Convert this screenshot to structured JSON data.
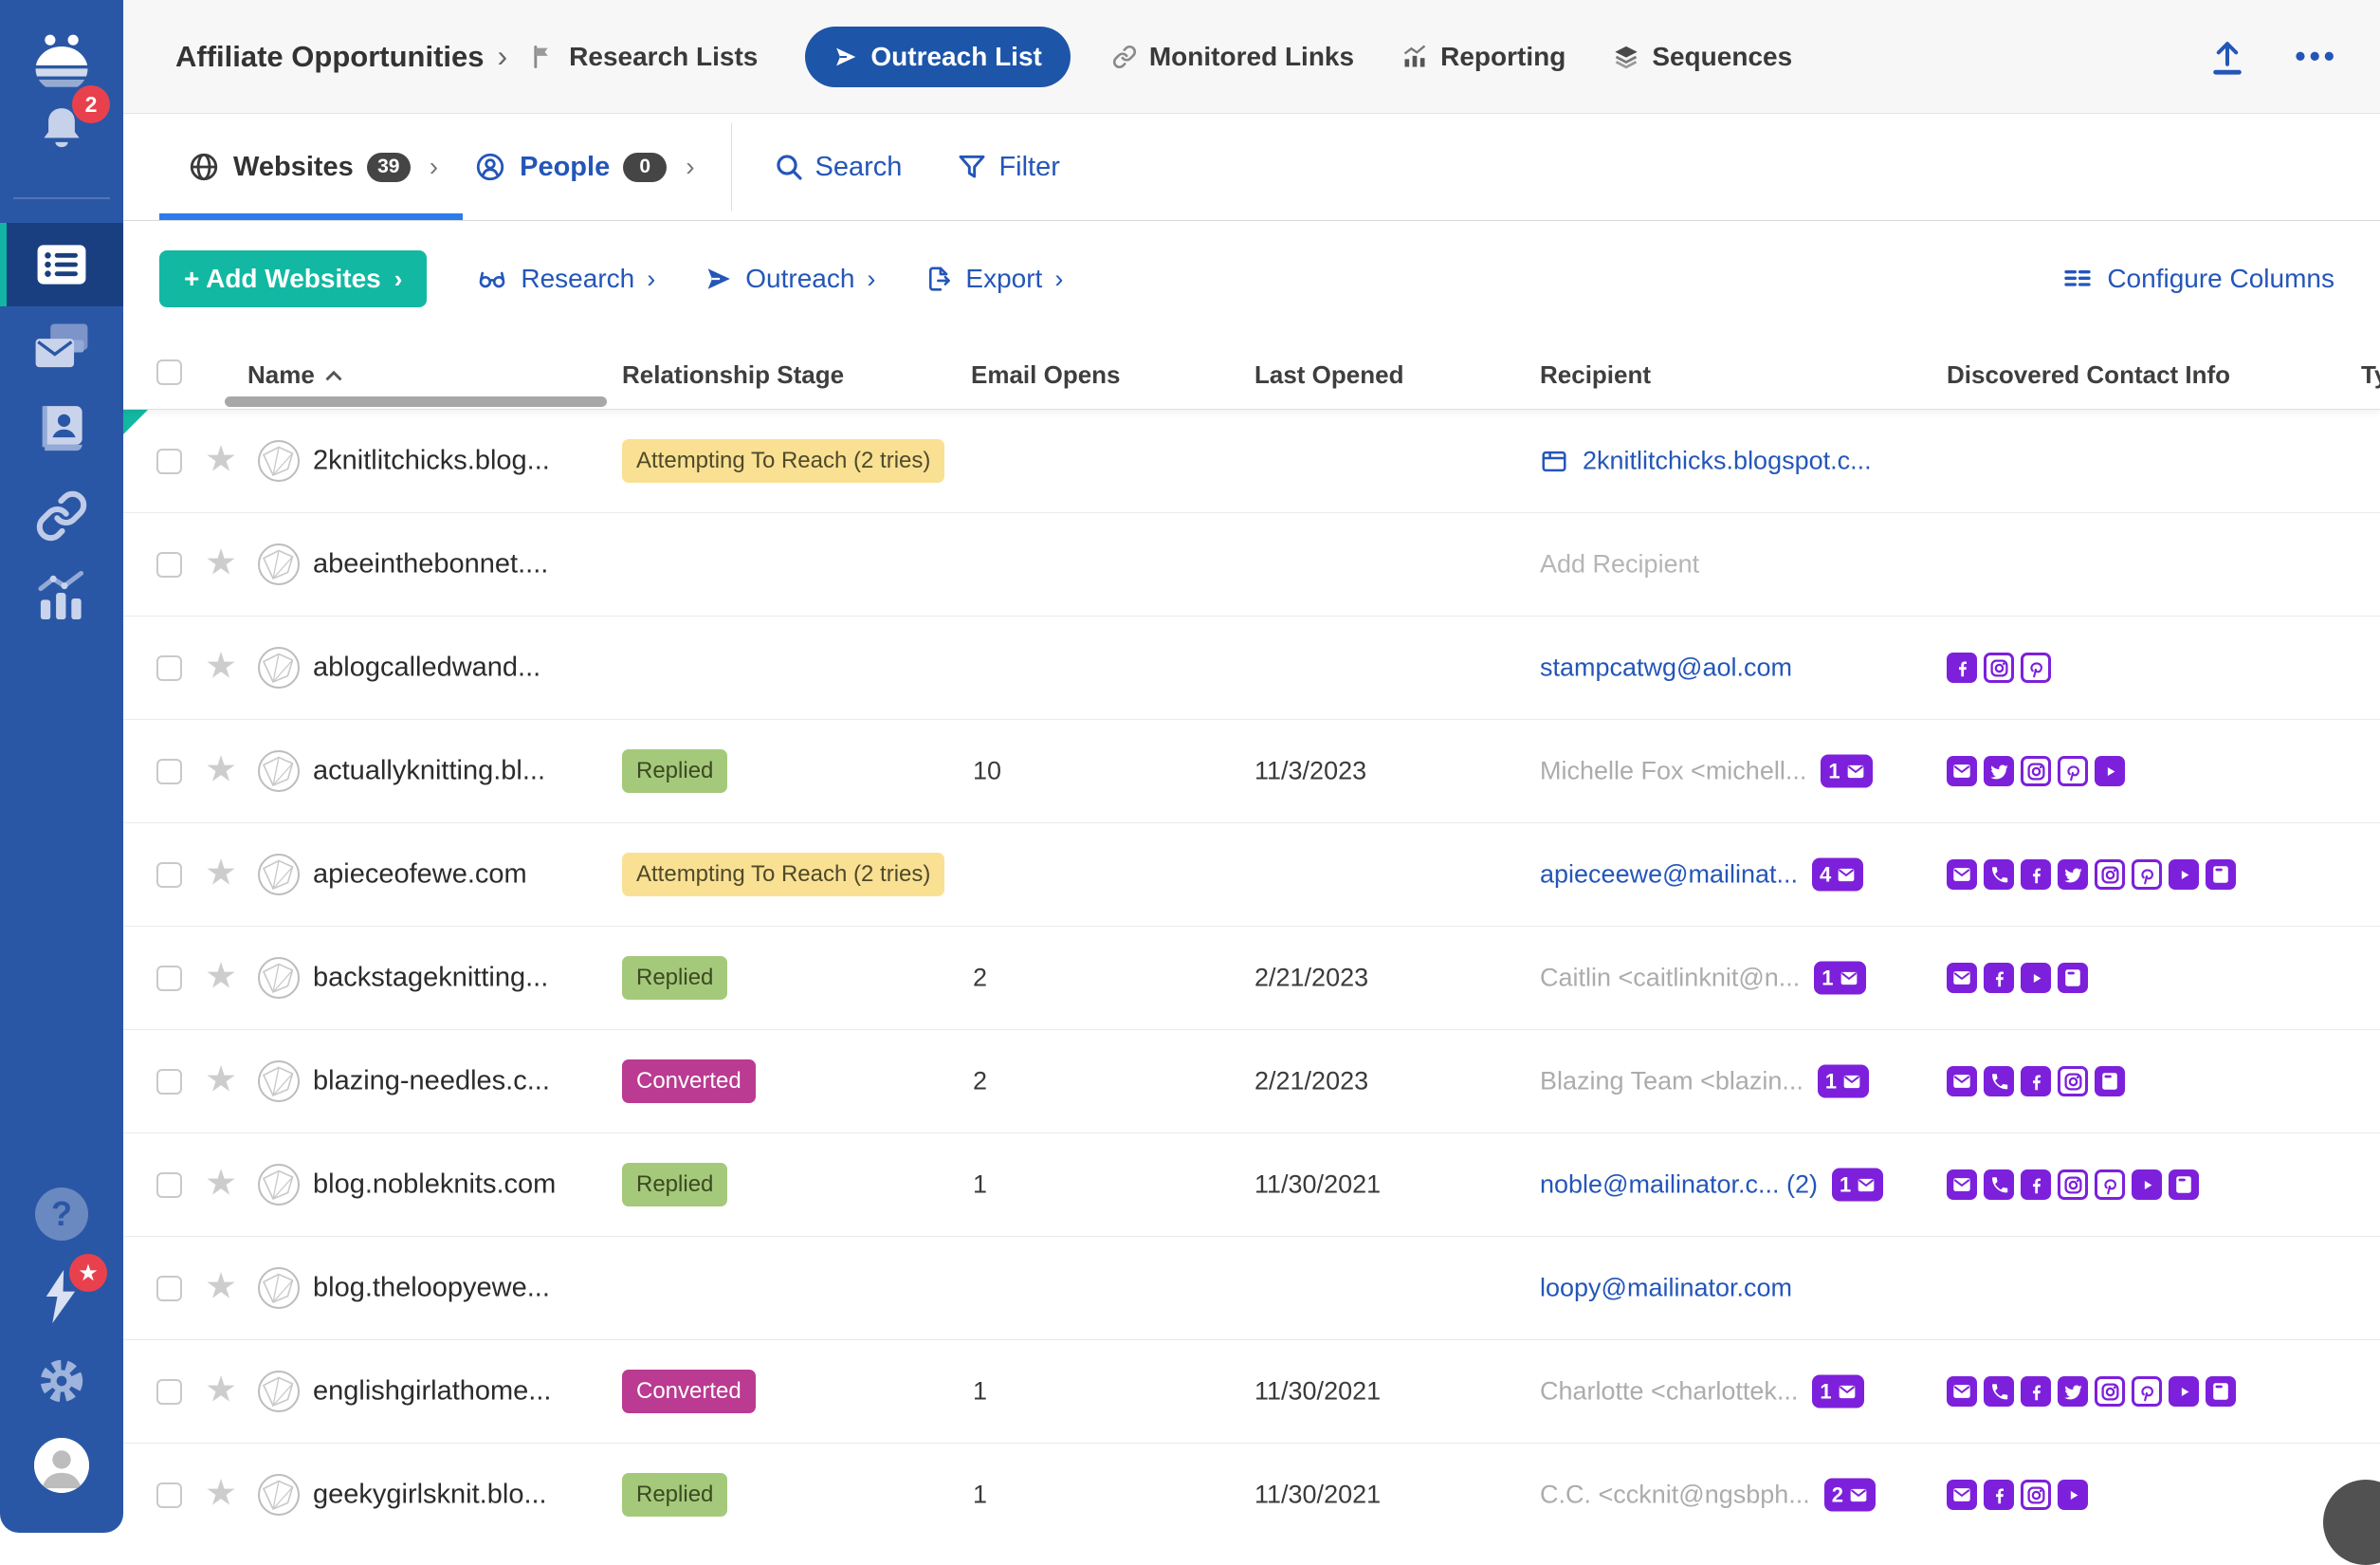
{
  "colors": {
    "sidebar_blue": "#2A57A5",
    "sidebar_selected": "#1A3F80",
    "teal_accent": "#12B8A2",
    "nav_pill_blue": "#1D55A9",
    "link_blue": "#2456B8",
    "contact_purple": "#7D20DB",
    "badge_yellow": "#F9E093",
    "badge_green": "#A5C97B",
    "badge_magenta": "#BA3B91",
    "active_tab_underline": "#2E7CE8",
    "notification_red": "#E8414D"
  },
  "sidebar": {
    "notification_count": "2",
    "help_glyph": "?"
  },
  "topnav": {
    "breadcrumb": "Affiliate Opportunities",
    "breadcrumb_chevron": "›",
    "research_lists": "Research Lists",
    "outreach_list": "Outreach List",
    "monitored_links": "Monitored Links",
    "reporting": "Reporting",
    "sequences": "Sequences",
    "more_label": "•••"
  },
  "tabs": {
    "websites_label": "Websites",
    "websites_count": "39",
    "websites_chevron": "›",
    "people_label": "People",
    "people_count": "0",
    "people_chevron": "›",
    "search_label": "Search",
    "filter_label": "Filter"
  },
  "toolbar": {
    "add_websites": "+ Add Websites",
    "add_chevron": "›",
    "research": "Research",
    "outreach": "Outreach",
    "export": "Export",
    "link_chevron": "›",
    "configure_columns": "Configure Columns"
  },
  "table": {
    "columns": [
      "Name",
      "Relationship Stage",
      "Email Opens",
      "Last Opened",
      "Recipient",
      "Discovered Contact Info",
      "Ty"
    ],
    "rows": [
      {
        "name": "2knitlitchicks.blog...",
        "stage": "Attempting To Reach (2 tries)",
        "stage_type": "attempting",
        "opens": "",
        "last_opened": "",
        "recipient": {
          "text": "2knitlitchicks.blogspot.c...",
          "style": "link",
          "icon": "browser-window",
          "count": ""
        },
        "contacts": []
      },
      {
        "name": "abeeinthebonnet....",
        "stage": "",
        "stage_type": "",
        "opens": "",
        "last_opened": "",
        "recipient": {
          "text": "Add Recipient",
          "style": "placeholder",
          "icon": "",
          "count": ""
        },
        "contacts": []
      },
      {
        "name": "ablogcalledwand...",
        "stage": "",
        "stage_type": "",
        "opens": "",
        "last_opened": "",
        "recipient": {
          "text": "stampcatwg@aol.com",
          "style": "link",
          "icon": "",
          "count": ""
        },
        "contacts": [
          "facebook",
          "instagram",
          "pinterest"
        ]
      },
      {
        "name": "actuallyknitting.bl...",
        "stage": "Replied",
        "stage_type": "replied",
        "opens": "10",
        "last_opened": "11/3/2023",
        "recipient": {
          "text": "Michelle Fox <michell...",
          "style": "muted",
          "icon": "",
          "count": "1"
        },
        "contacts": [
          "envelope",
          "twitter",
          "instagram",
          "pinterest",
          "youtube"
        ]
      },
      {
        "name": "apieceofewe.com",
        "stage": "Attempting To Reach (2 tries)",
        "stage_type": "attempting",
        "opens": "",
        "last_opened": "",
        "recipient": {
          "text": "apieceewe@mailinat...",
          "style": "link",
          "icon": "",
          "count": "4"
        },
        "contacts": [
          "envelope",
          "phone",
          "facebook",
          "twitter",
          "instagram",
          "pinterest",
          "youtube",
          "contact-card"
        ]
      },
      {
        "name": "backstageknitting...",
        "stage": "Replied",
        "stage_type": "replied",
        "opens": "2",
        "last_opened": "2/21/2023",
        "recipient": {
          "text": "Caitlin <caitlinknit@n...",
          "style": "muted",
          "icon": "",
          "count": "1"
        },
        "contacts": [
          "envelope",
          "facebook",
          "youtube",
          "contact-card"
        ]
      },
      {
        "name": "blazing-needles.c...",
        "stage": "Converted",
        "stage_type": "converted",
        "opens": "2",
        "last_opened": "2/21/2023",
        "recipient": {
          "text": "Blazing Team <blazin...",
          "style": "muted",
          "icon": "",
          "count": "1"
        },
        "contacts": [
          "envelope",
          "phone",
          "facebook",
          "instagram",
          "contact-card"
        ]
      },
      {
        "name": "blog.nobleknits.com",
        "stage": "Replied",
        "stage_type": "replied",
        "opens": "1",
        "last_opened": "11/30/2021",
        "recipient": {
          "text": "noble@mailinator.c... (2)",
          "style": "link",
          "icon": "",
          "count": "1"
        },
        "contacts": [
          "envelope",
          "phone",
          "facebook",
          "instagram",
          "pinterest",
          "youtube",
          "contact-card"
        ]
      },
      {
        "name": "blog.theloopyewe...",
        "stage": "",
        "stage_type": "",
        "opens": "",
        "last_opened": "",
        "recipient": {
          "text": "loopy@mailinator.com",
          "style": "link",
          "icon": "",
          "count": ""
        },
        "contacts": []
      },
      {
        "name": "englishgirlathome...",
        "stage": "Converted",
        "stage_type": "converted",
        "opens": "1",
        "last_opened": "11/30/2021",
        "recipient": {
          "text": "Charlotte <charlottek...",
          "style": "muted",
          "icon": "",
          "count": "1"
        },
        "contacts": [
          "envelope",
          "phone",
          "facebook",
          "twitter",
          "instagram",
          "pinterest",
          "youtube",
          "contact-card"
        ]
      },
      {
        "name": "geekygirlsknit.blo...",
        "stage": "Replied",
        "stage_type": "replied",
        "opens": "1",
        "last_opened": "11/30/2021",
        "recipient": {
          "text": "C.C. <ccknit@ngsbph...",
          "style": "muted",
          "icon": "",
          "count": "2"
        },
        "contacts": [
          "envelope",
          "facebook",
          "instagram",
          "youtube"
        ]
      }
    ]
  }
}
